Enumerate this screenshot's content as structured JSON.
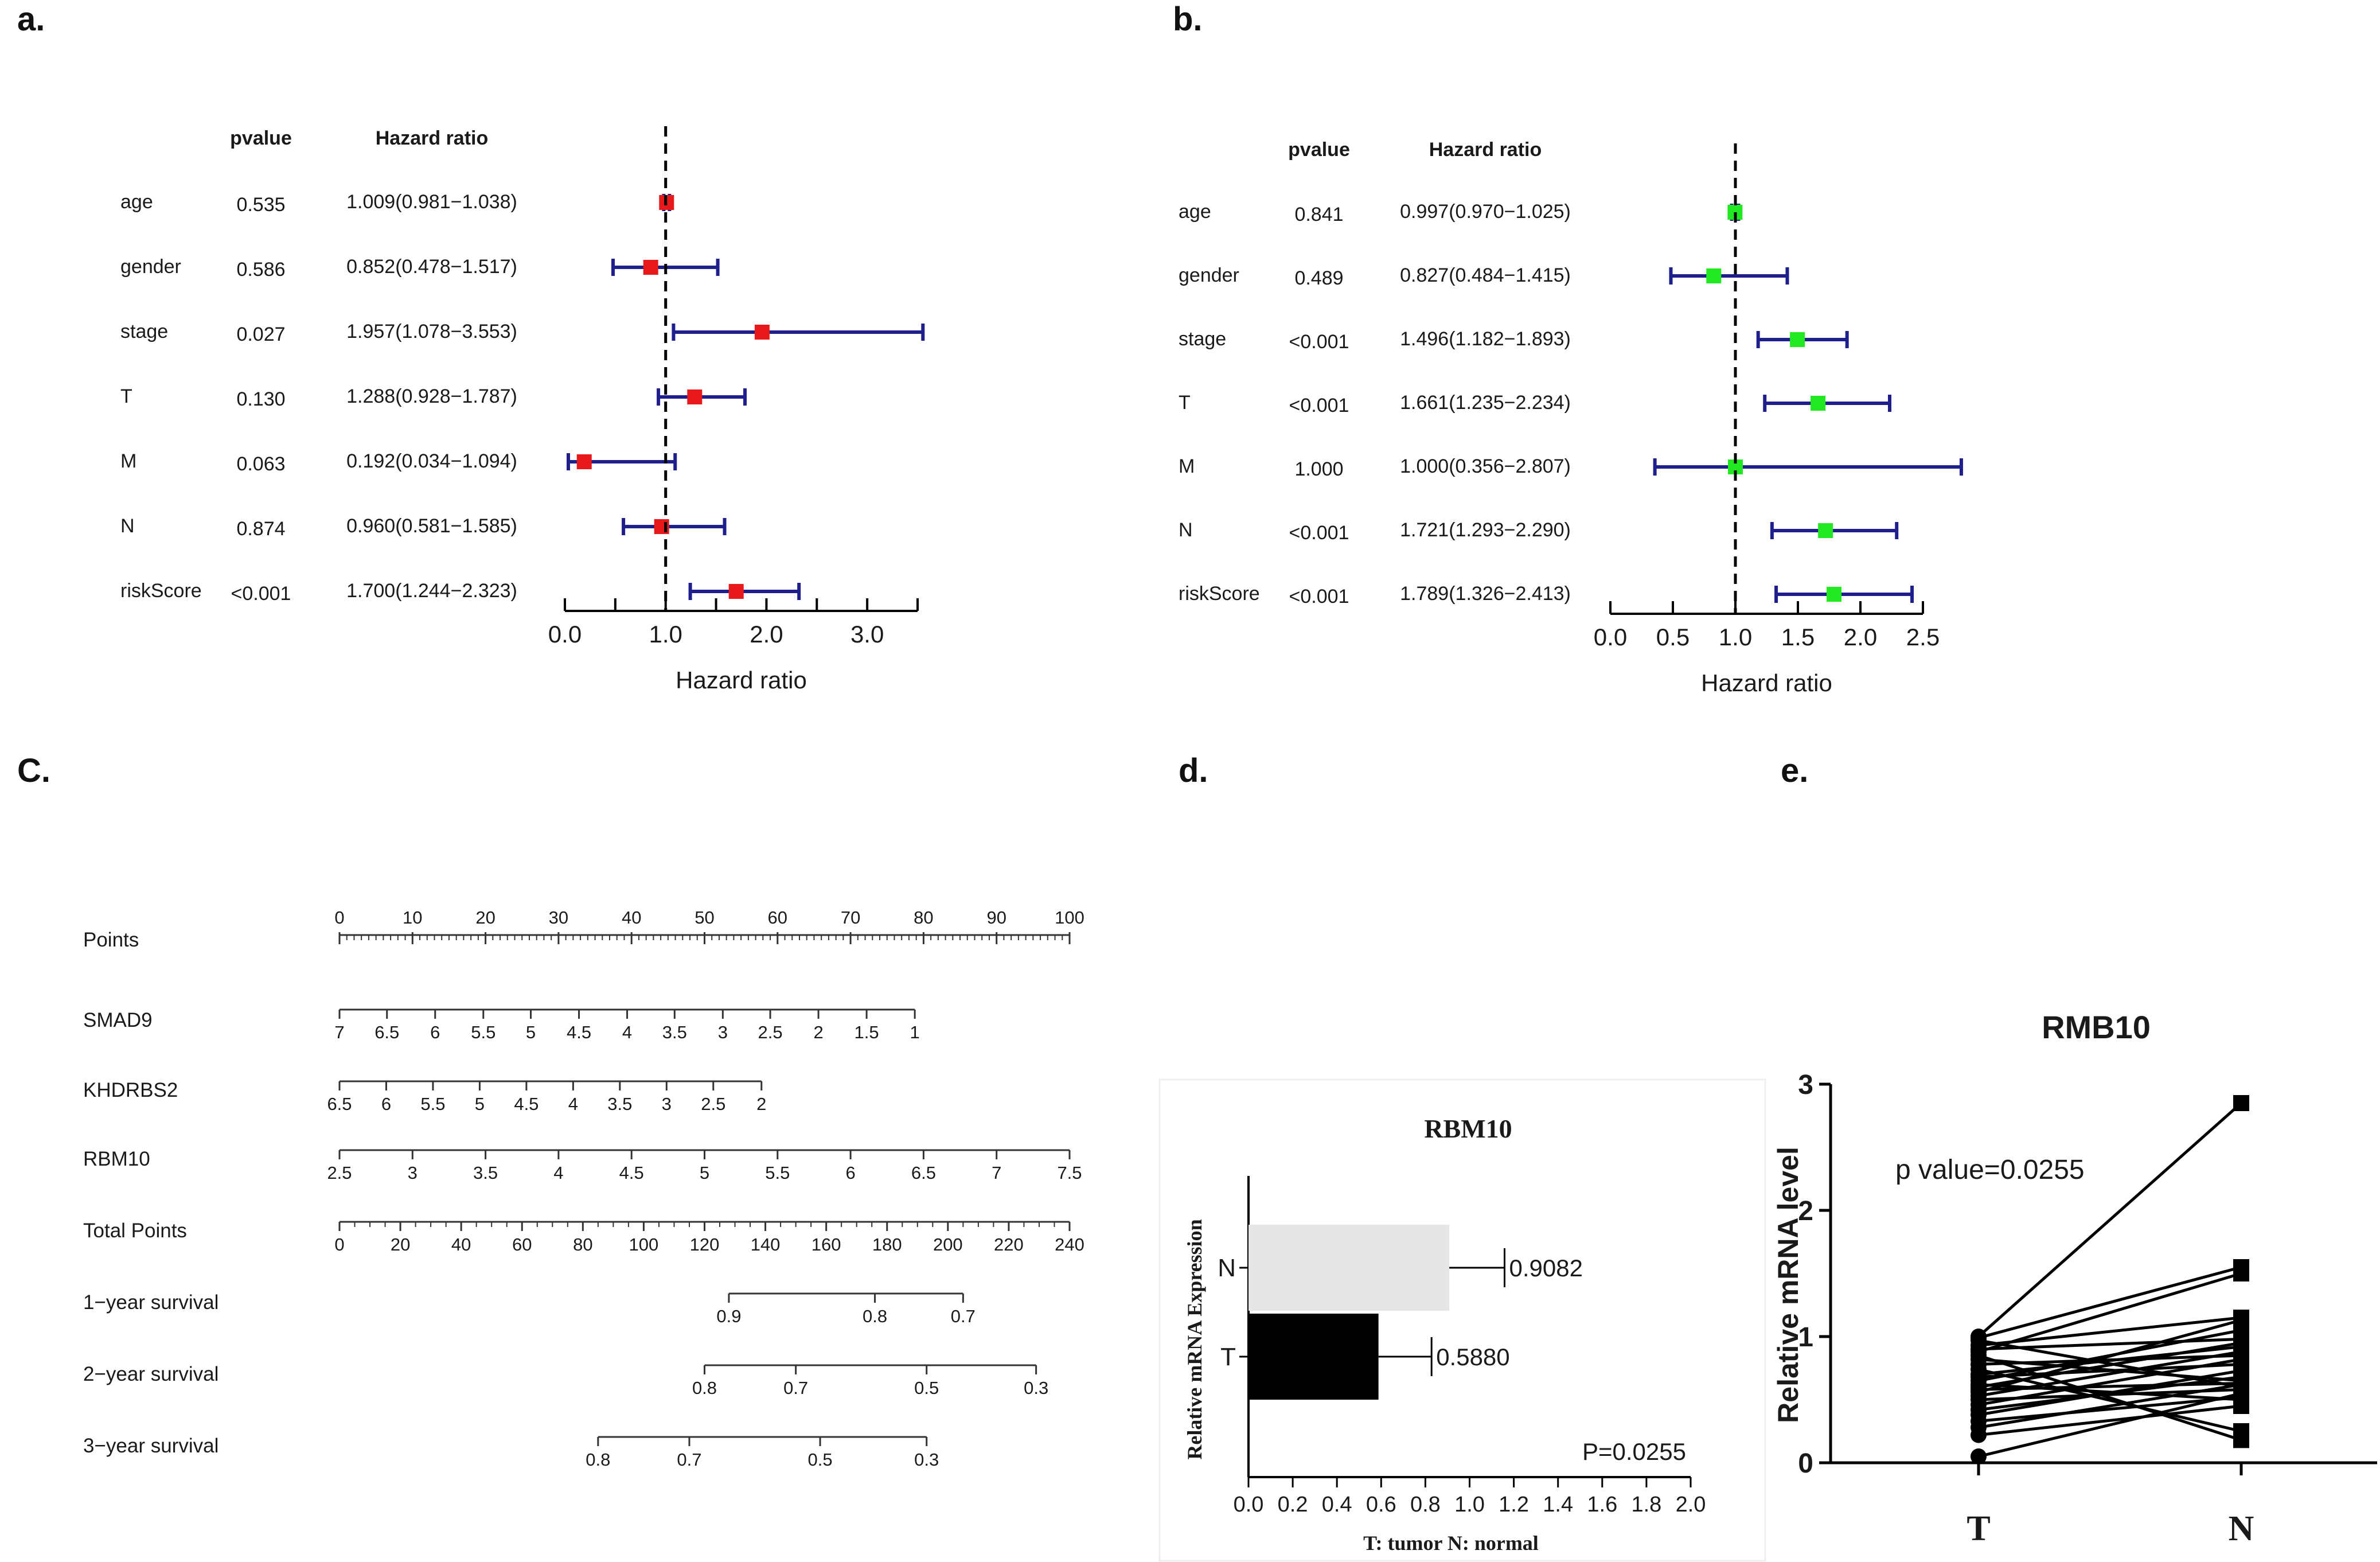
{
  "labels": {
    "a": "a.",
    "b": "b.",
    "c": "C.",
    "d": "d.",
    "e": "e."
  },
  "chart_data": [
    {
      "id": "forest_a",
      "type": "forest",
      "header_pvalue": "pvalue",
      "header_hr": "Hazard ratio",
      "xlabel": "Hazard ratio",
      "xlim": [
        0,
        3.5
      ],
      "ref_line": 1.0,
      "ticks": [
        0,
        0.5,
        1.0,
        1.5,
        2.0,
        2.5,
        3.0,
        3.5
      ],
      "tick_labels": [
        {
          "v": 0,
          "t": "0.0"
        },
        {
          "v": 1,
          "t": "1.0"
        },
        {
          "v": 2,
          "t": "2.0"
        },
        {
          "v": 3,
          "t": "3.0"
        }
      ],
      "marker_color": "#e8191a",
      "ci_color": "#1e1e8c",
      "rows": [
        {
          "name": "age",
          "pvalue": "0.535",
          "hr_text": "1.009(0.981−1.038)",
          "hr": 1.009,
          "lo": 0.981,
          "hi": 1.038
        },
        {
          "name": "gender",
          "pvalue": "0.586",
          "hr_text": "0.852(0.478−1.517)",
          "hr": 0.852,
          "lo": 0.478,
          "hi": 1.517
        },
        {
          "name": "stage",
          "pvalue": "0.027",
          "hr_text": "1.957(1.078−3.553)",
          "hr": 1.957,
          "lo": 1.078,
          "hi": 3.553
        },
        {
          "name": "T",
          "pvalue": "0.130",
          "hr_text": "1.288(0.928−1.787)",
          "hr": 1.288,
          "lo": 0.928,
          "hi": 1.787
        },
        {
          "name": "M",
          "pvalue": "0.063",
          "hr_text": "0.192(0.034−1.094)",
          "hr": 0.192,
          "lo": 0.034,
          "hi": 1.094
        },
        {
          "name": "N",
          "pvalue": "0.874",
          "hr_text": "0.960(0.581−1.585)",
          "hr": 0.96,
          "lo": 0.581,
          "hi": 1.585
        },
        {
          "name": "riskScore",
          "pvalue": "<0.001",
          "hr_text": "1.700(1.244−2.323)",
          "hr": 1.7,
          "lo": 1.244,
          "hi": 2.323
        }
      ]
    },
    {
      "id": "forest_b",
      "type": "forest",
      "header_pvalue": "pvalue",
      "header_hr": "Hazard ratio",
      "xlabel": "Hazard ratio",
      "xlim": [
        0,
        2.5
      ],
      "ref_line": 1.0,
      "ticks": [
        0,
        0.5,
        1.0,
        1.5,
        2.0,
        2.5
      ],
      "tick_labels": [
        {
          "v": 0,
          "t": "0.0"
        },
        {
          "v": 0.5,
          "t": "0.5"
        },
        {
          "v": 1,
          "t": "1.0"
        },
        {
          "v": 1.5,
          "t": "1.5"
        },
        {
          "v": 2,
          "t": "2.0"
        },
        {
          "v": 2.5,
          "t": "2.5"
        }
      ],
      "marker_color": "#22e822",
      "ci_color": "#1e1e8c",
      "rows": [
        {
          "name": "age",
          "pvalue": "0.841",
          "hr_text": "0.997(0.970−1.025)",
          "hr": 0.997,
          "lo": 0.97,
          "hi": 1.025
        },
        {
          "name": "gender",
          "pvalue": "0.489",
          "hr_text": "0.827(0.484−1.415)",
          "hr": 0.827,
          "lo": 0.484,
          "hi": 1.415
        },
        {
          "name": "stage",
          "pvalue": "<0.001",
          "hr_text": "1.496(1.182−1.893)",
          "hr": 1.496,
          "lo": 1.182,
          "hi": 1.893
        },
        {
          "name": "T",
          "pvalue": "<0.001",
          "hr_text": "1.661(1.235−2.234)",
          "hr": 1.661,
          "lo": 1.235,
          "hi": 2.234
        },
        {
          "name": "M",
          "pvalue": "1.000",
          "hr_text": "1.000(0.356−2.807)",
          "hr": 1.0,
          "lo": 0.356,
          "hi": 2.807
        },
        {
          "name": "N",
          "pvalue": "<0.001",
          "hr_text": "1.721(1.293−2.290)",
          "hr": 1.721,
          "lo": 1.293,
          "hi": 2.29
        },
        {
          "name": "riskScore",
          "pvalue": "<0.001",
          "hr_text": "1.789(1.326−2.413)",
          "hr": 1.789,
          "lo": 1.326,
          "hi": 2.413
        }
      ]
    },
    {
      "id": "nomogram_c",
      "type": "nomogram",
      "rows": [
        {
          "name": "Points",
          "scale": [
            0,
            100
          ],
          "ticks": [
            {
              "v": 0,
              "t": "0"
            },
            {
              "v": 10,
              "t": "10"
            },
            {
              "v": 20,
              "t": "20"
            },
            {
              "v": 30,
              "t": "30"
            },
            {
              "v": 40,
              "t": "40"
            },
            {
              "v": 50,
              "t": "50"
            },
            {
              "v": 60,
              "t": "60"
            },
            {
              "v": 70,
              "t": "70"
            },
            {
              "v": 80,
              "t": "80"
            },
            {
              "v": 90,
              "t": "90"
            },
            {
              "v": 100,
              "t": "100"
            }
          ],
          "minor": 1,
          "labels_above": true
        },
        {
          "name": "SMAD9",
          "scale": [
            0,
            100
          ],
          "ticks": [
            {
              "v": 0,
              "t": "7"
            },
            {
              "v": 6.5,
              "t": "6.5"
            },
            {
              "v": 13.1,
              "t": "6"
            },
            {
              "v": 19.7,
              "t": "5.5"
            },
            {
              "v": 26.2,
              "t": "5"
            },
            {
              "v": 32.8,
              "t": "4.5"
            },
            {
              "v": 39.4,
              "t": "4"
            },
            {
              "v": 45.9,
              "t": "3.5"
            },
            {
              "v": 52.5,
              "t": "3"
            },
            {
              "v": 59.0,
              "t": "2.5"
            },
            {
              "v": 65.6,
              "t": "2"
            },
            {
              "v": 72.2,
              "t": "1.5"
            },
            {
              "v": 78.8,
              "t": "1"
            }
          ]
        },
        {
          "name": "KHDRBS2",
          "scale": [
            0,
            100
          ],
          "ticks": [
            {
              "v": 0,
              "t": "6.5"
            },
            {
              "v": 6.4,
              "t": "6"
            },
            {
              "v": 12.8,
              "t": "5.5"
            },
            {
              "v": 19.2,
              "t": "5"
            },
            {
              "v": 25.6,
              "t": "4.5"
            },
            {
              "v": 32.0,
              "t": "4"
            },
            {
              "v": 38.4,
              "t": "3.5"
            },
            {
              "v": 44.8,
              "t": "3"
            },
            {
              "v": 51.2,
              "t": "2.5"
            },
            {
              "v": 57.8,
              "t": "2"
            }
          ]
        },
        {
          "name": "RBM10",
          "scale": [
            0,
            100
          ],
          "ticks": [
            {
              "v": 0,
              "t": "2.5"
            },
            {
              "v": 10,
              "t": "3"
            },
            {
              "v": 20,
              "t": "3.5"
            },
            {
              "v": 30,
              "t": "4"
            },
            {
              "v": 40,
              "t": "4.5"
            },
            {
              "v": 50,
              "t": "5"
            },
            {
              "v": 60,
              "t": "5.5"
            },
            {
              "v": 70,
              "t": "6"
            },
            {
              "v": 80,
              "t": "6.5"
            },
            {
              "v": 90,
              "t": "7"
            },
            {
              "v": 100,
              "t": "7.5"
            }
          ]
        },
        {
          "name": "Total Points",
          "scale": [
            0,
            240
          ],
          "ticks": [
            {
              "v": 0,
              "t": "0"
            },
            {
              "v": 20,
              "t": "20"
            },
            {
              "v": 40,
              "t": "40"
            },
            {
              "v": 60,
              "t": "60"
            },
            {
              "v": 80,
              "t": "80"
            },
            {
              "v": 100,
              "t": "100"
            },
            {
              "v": 120,
              "t": "120"
            },
            {
              "v": 140,
              "t": "140"
            },
            {
              "v": 160,
              "t": "160"
            },
            {
              "v": 180,
              "t": "180"
            },
            {
              "v": 200,
              "t": "200"
            },
            {
              "v": 220,
              "t": "220"
            },
            {
              "v": 240,
              "t": "240"
            }
          ],
          "minor": 5
        },
        {
          "name": "1−year survival",
          "scale": [
            0,
            240
          ],
          "ticks": [
            {
              "v": 128,
              "t": "0.9"
            },
            {
              "v": 176,
              "t": "0.8"
            },
            {
              "v": 205,
              "t": "0.7"
            }
          ]
        },
        {
          "name": "2−year survival",
          "scale": [
            0,
            240
          ],
          "ticks": [
            {
              "v": 120,
              "t": "0.8"
            },
            {
              "v": 150,
              "t": "0.7"
            },
            {
              "v": 193,
              "t": "0.5"
            },
            {
              "v": 229,
              "t": "0.3"
            }
          ]
        },
        {
          "name": "3−year survival",
          "scale": [
            0,
            240
          ],
          "ticks": [
            {
              "v": 85,
              "t": "0.8"
            },
            {
              "v": 115,
              "t": "0.7"
            },
            {
              "v": 158,
              "t": "0.5"
            },
            {
              "v": 193,
              "t": "0.3"
            }
          ]
        }
      ]
    },
    {
      "id": "bar_d",
      "type": "bar",
      "orientation": "horizontal",
      "title": "RBM10",
      "ylabel": "Relative mRNA Expression",
      "xlabel": "T: tumor   N: normal",
      "xlim": [
        0,
        2.0
      ],
      "ticks": [
        {
          "v": 0,
          "t": "0.0"
        },
        {
          "v": 0.2,
          "t": "0.2"
        },
        {
          "v": 0.4,
          "t": "0.4"
        },
        {
          "v": 0.6,
          "t": "0.6"
        },
        {
          "v": 0.8,
          "t": "0.8"
        },
        {
          "v": 1.0,
          "t": "1.0"
        },
        {
          "v": 1.2,
          "t": "1.2"
        },
        {
          "v": 1.4,
          "t": "1.4"
        },
        {
          "v": 1.6,
          "t": "1.6"
        },
        {
          "v": 1.8,
          "t": "1.8"
        },
        {
          "v": 2.0,
          "t": "2.0"
        }
      ],
      "bars": [
        {
          "category": "N",
          "value": 0.9082,
          "label": "0.9082",
          "error": 0.25,
          "color": "#e6e6e6"
        },
        {
          "category": "T",
          "value": 0.588,
          "label": "0.5880",
          "error": 0.24,
          "color": "#000000"
        }
      ],
      "annotation": "P=0.0255"
    },
    {
      "id": "paired_e",
      "type": "line",
      "title": "RMB10",
      "ylabel": "Relative  mRNA level",
      "categories": [
        "T",
        "N"
      ],
      "ylim": [
        0,
        3
      ],
      "yticks": [
        {
          "v": 0,
          "t": "0"
        },
        {
          "v": 1,
          "t": "1"
        },
        {
          "v": 2,
          "t": "2"
        },
        {
          "v": 3,
          "t": "3"
        }
      ],
      "annotation": "p value=0.0255",
      "pairs": [
        [
          0.05,
          0.55
        ],
        [
          0.22,
          0.45
        ],
        [
          0.28,
          0.62
        ],
        [
          0.33,
          0.52
        ],
        [
          0.38,
          0.73
        ],
        [
          0.42,
          0.68
        ],
        [
          0.46,
          0.82
        ],
        [
          0.5,
          0.58
        ],
        [
          0.53,
          0.88
        ],
        [
          0.56,
          1.13
        ],
        [
          0.58,
          0.63
        ],
        [
          0.6,
          0.95
        ],
        [
          0.62,
          0.5
        ],
        [
          0.65,
          1.05
        ],
        [
          0.68,
          0.78
        ],
        [
          0.7,
          0.92
        ],
        [
          0.74,
          0.25
        ],
        [
          0.78,
          0.85
        ],
        [
          0.82,
          0.65
        ],
        [
          0.85,
          0.18
        ],
        [
          0.88,
          1.5
        ],
        [
          0.9,
          0.98
        ],
        [
          0.93,
          1.15
        ],
        [
          0.97,
          0.6
        ],
        [
          0.99,
          1.55
        ],
        [
          1.0,
          2.85
        ]
      ]
    }
  ]
}
